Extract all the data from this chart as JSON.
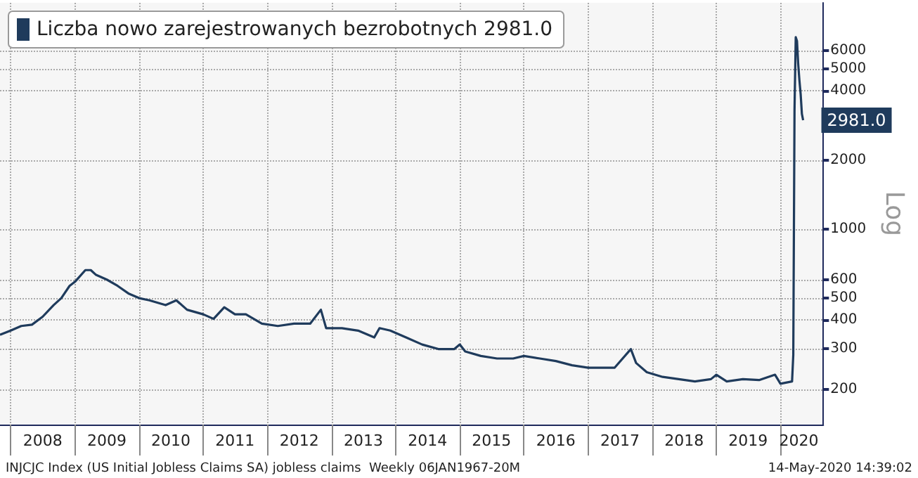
{
  "chart_data": {
    "type": "line",
    "ylabel": "Log",
    "log": "y",
    "legend": "top left",
    "grid": true,
    "line_style": "solid",
    "marker": "none",
    "xlim": [
      "2007-11-01",
      "2020-09-01"
    ],
    "xticks": [
      {
        "value": "2008-01-01",
        "label": null
      },
      {
        "value": "2008-07-01",
        "label": "2008"
      },
      {
        "value": "2009-01-01",
        "label": null
      },
      {
        "value": "2009-07-01",
        "label": "2009"
      },
      {
        "value": "2010-01-01",
        "label": null
      },
      {
        "value": "2010-07-01",
        "label": "2010"
      },
      {
        "value": "2011-01-01",
        "label": null
      },
      {
        "value": "2011-07-01",
        "label": "2011"
      },
      {
        "value": "2012-01-01",
        "label": null
      },
      {
        "value": "2012-07-01",
        "label": "2012"
      },
      {
        "value": "2013-01-01",
        "label": null
      },
      {
        "value": "2013-07-01",
        "label": "2013"
      },
      {
        "value": "2014-01-01",
        "label": null
      },
      {
        "value": "2014-07-01",
        "label": "2014"
      },
      {
        "value": "2015-01-01",
        "label": null
      },
      {
        "value": "2015-07-01",
        "label": "2015"
      },
      {
        "value": "2016-01-01",
        "label": null
      },
      {
        "value": "2016-07-01",
        "label": "2016"
      },
      {
        "value": "2017-01-01",
        "label": null
      },
      {
        "value": "2017-07-01",
        "label": "2017"
      },
      {
        "value": "2018-01-01",
        "label": null
      },
      {
        "value": "2018-07-01",
        "label": "2018"
      },
      {
        "value": "2019-01-01",
        "label": null
      },
      {
        "value": "2019-07-01",
        "label": "2019"
      },
      {
        "value": "2020-01-01",
        "label": null
      },
      {
        "value": "2020-04-15",
        "label": "2020"
      }
    ],
    "ylim": [
      140,
      9700
    ],
    "yticks": [
      200,
      300,
      400,
      500,
      600,
      1000,
      2000,
      4000,
      5000,
      6000
    ],
    "annotations": [
      "INJCJC Index (US Initial Jobless Claims SA) jobless claims  Weekly 06JAN1967-20M",
      "14-May-2020 14:39:02"
    ],
    "series": [
      {
        "name": "Liczba nowo zarejestrowanych bezrobotnych 2981.0",
        "color": "#1f3b5c",
        "x": [
          "2007-11-01",
          "2008-01-01",
          "2008-03-01",
          "2008-05-01",
          "2008-07-01",
          "2008-09-01",
          "2008-10-15",
          "2008-12-01",
          "2009-01-01",
          "2009-03-01",
          "2009-04-01",
          "2009-05-01",
          "2009-07-01",
          "2009-09-01",
          "2009-11-01",
          "2010-01-01",
          "2010-03-01",
          "2010-06-01",
          "2010-08-01",
          "2010-10-01",
          "2011-01-01",
          "2011-03-01",
          "2011-05-01",
          "2011-07-01",
          "2011-09-01",
          "2011-12-01",
          "2012-03-01",
          "2012-06-01",
          "2012-09-01",
          "2012-11-01",
          "2012-12-01",
          "2013-03-01",
          "2013-06-01",
          "2013-09-01",
          "2013-10-01",
          "2013-12-01",
          "2014-03-01",
          "2014-06-01",
          "2014-09-01",
          "2014-12-01",
          "2015-01-01",
          "2015-02-01",
          "2015-05-01",
          "2015-08-01",
          "2015-11-01",
          "2016-01-01",
          "2016-04-01",
          "2016-07-01",
          "2016-10-01",
          "2017-01-01",
          "2017-04-01",
          "2017-06-01",
          "2017-09-01",
          "2017-10-01",
          "2017-12-01",
          "2018-03-01",
          "2018-06-01",
          "2018-09-01",
          "2018-12-01",
          "2019-01-01",
          "2019-03-01",
          "2019-06-01",
          "2019-09-01",
          "2019-12-01",
          "2020-01-01",
          "2020-03-07",
          "2020-03-14",
          "2020-03-21",
          "2020-03-28",
          "2020-04-04",
          "2020-04-11",
          "2020-04-18",
          "2020-04-25",
          "2020-05-02",
          "2020-05-09"
        ],
        "values": [
          345,
          360,
          377,
          382,
          414,
          465,
          499,
          564,
          588,
          661,
          661,
          630,
          601,
          564,
          523,
          499,
          488,
          465,
          488,
          444,
          424,
          405,
          455,
          424,
          424,
          386,
          377,
          386,
          386,
          444,
          369,
          369,
          360,
          336,
          369,
          360,
          336,
          313,
          299,
          299,
          313,
          292,
          279,
          272,
          272,
          279,
          272,
          265,
          254,
          248,
          248,
          248,
          299,
          260,
          237,
          226,
          221,
          216,
          221,
          231,
          216,
          221,
          219,
          231,
          211,
          216,
          282,
          3307,
          6867,
          6615,
          5237,
          4442,
          3867,
          3176,
          2981
        ],
        "value_labels": [
          null,
          null,
          null,
          null,
          null,
          null,
          null,
          null,
          null,
          null,
          null,
          null,
          null,
          null,
          null,
          null,
          null,
          null,
          null,
          null,
          null,
          null,
          null,
          null,
          null,
          null,
          null,
          null,
          null,
          null,
          null,
          null,
          null,
          null,
          null,
          null,
          null,
          null,
          null,
          null,
          null,
          null,
          null,
          null,
          null,
          null,
          null,
          null,
          null,
          null,
          null,
          null,
          null,
          null,
          null,
          null,
          null,
          null,
          null,
          null,
          null,
          null,
          null,
          null,
          null,
          null,
          null,
          null,
          null,
          null,
          null,
          null,
          null,
          null,
          "2981.0"
        ]
      }
    ]
  }
}
